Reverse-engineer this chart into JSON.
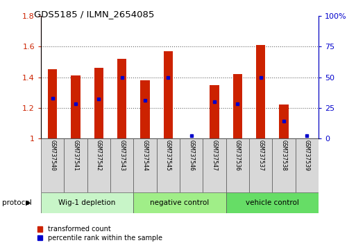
{
  "title": "GDS5185 / ILMN_2654085",
  "samples": [
    "GSM737540",
    "GSM737541",
    "GSM737542",
    "GSM737543",
    "GSM737544",
    "GSM737545",
    "GSM737546",
    "GSM737547",
    "GSM737536",
    "GSM737537",
    "GSM737538",
    "GSM737539"
  ],
  "transformed_count": [
    1.45,
    1.41,
    1.46,
    1.52,
    1.38,
    1.57,
    1.0,
    1.35,
    1.42,
    1.61,
    1.22,
    1.0
  ],
  "percentile_rank": [
    33,
    28,
    32,
    50,
    31,
    50,
    2,
    30,
    28,
    50,
    14,
    2
  ],
  "groups": [
    {
      "label": "Wig-1 depletion",
      "start": 0,
      "end": 4
    },
    {
      "label": "negative control",
      "start": 4,
      "end": 8
    },
    {
      "label": "vehicle control",
      "start": 8,
      "end": 12
    }
  ],
  "group_colors": [
    "#c8f5c8",
    "#a0ee88",
    "#66dd66"
  ],
  "ylim_left": [
    1.0,
    1.8
  ],
  "ylim_right": [
    0,
    100
  ],
  "yticks_left": [
    1.0,
    1.2,
    1.4,
    1.6,
    1.8
  ],
  "ytick_labels_left": [
    "1",
    "1.2",
    "1.4",
    "1.6",
    "1.8"
  ],
  "yticks_right": [
    0,
    25,
    50,
    75,
    100
  ],
  "ytick_labels_right": [
    "0",
    "25",
    "50",
    "75",
    "100%"
  ],
  "bar_color": "#cc2200",
  "dot_color": "#0000cc",
  "background_color": "#ffffff",
  "grid_color": "#666666",
  "protocol_label": "protocol",
  "bar_width": 0.4,
  "legend_items": [
    "transformed count",
    "percentile rank within the sample"
  ]
}
